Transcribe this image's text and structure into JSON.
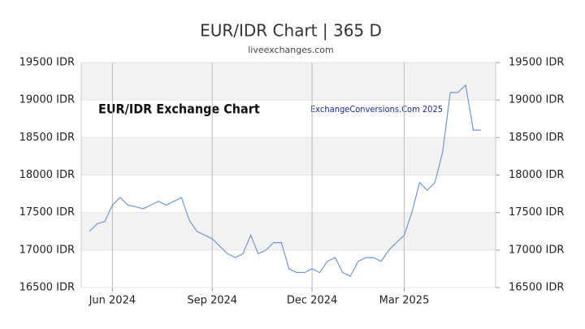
{
  "chart_data": {
    "type": "line",
    "title": "EUR/IDR Chart | 365 D",
    "subtitle": "liveexchanges.com",
    "annotations": [
      "EUR/IDR Exchange Chart",
      "ExchangeConversions.Com 2025"
    ],
    "categories": [
      null,
      null,
      null,
      "Jun 2024",
      null,
      null,
      null,
      null,
      null,
      null,
      null,
      null,
      null,
      null,
      null,
      null,
      "Sep 2024",
      null,
      null,
      null,
      null,
      null,
      null,
      null,
      null,
      null,
      null,
      null,
      null,
      "Dec 2024",
      null,
      null,
      null,
      null,
      null,
      null,
      null,
      null,
      null,
      null,
      null,
      "Mar 2025",
      null,
      null,
      null,
      null,
      null,
      null,
      null,
      null,
      null,
      null
    ],
    "series": [
      {
        "name": "EUR/IDR",
        "color": "#6f97d8",
        "values": [
          17250,
          17350,
          17380,
          17600,
          17700,
          17600,
          17580,
          17550,
          17600,
          17650,
          17600,
          17650,
          17700,
          17400,
          17250,
          17200,
          17150,
          17050,
          16950,
          16900,
          16950,
          17200,
          16950,
          17000,
          17100,
          17100,
          16750,
          16700,
          16700,
          16750,
          16700,
          16850,
          16900,
          16700,
          16650,
          16850,
          16900,
          16900,
          16850,
          17000,
          17100,
          17200,
          17500,
          17900,
          17800,
          17900,
          18300,
          19100,
          19100,
          19200,
          18600,
          18600
        ]
      }
    ],
    "ylim": [
      16500,
      19500
    ],
    "yticks": [
      {
        "value": 16500,
        "label": "16500 IDR"
      },
      {
        "value": 17000,
        "label": "17000 IDR"
      },
      {
        "value": 17500,
        "label": "17500 IDR"
      },
      {
        "value": 18000,
        "label": "18000 IDR"
      },
      {
        "value": 18500,
        "label": "18500 IDR"
      },
      {
        "value": 19000,
        "label": "19000 IDR"
      },
      {
        "value": 19500,
        "label": "19500 IDR"
      }
    ],
    "y2lim": [
      16500,
      19500
    ],
    "y2ticks": [
      {
        "value": 16500,
        "label": "16500 IDR"
      },
      {
        "value": 17000,
        "label": "17000 IDR"
      },
      {
        "value": 17500,
        "label": "17500 IDR"
      },
      {
        "value": 18000,
        "label": "18000 IDR"
      },
      {
        "value": 18500,
        "label": "18500 IDR"
      },
      {
        "value": 19000,
        "label": "19000 IDR"
      },
      {
        "value": 19500,
        "label": "19500 IDR"
      }
    ],
    "grid": true,
    "band_color": "#f2f2f2"
  }
}
